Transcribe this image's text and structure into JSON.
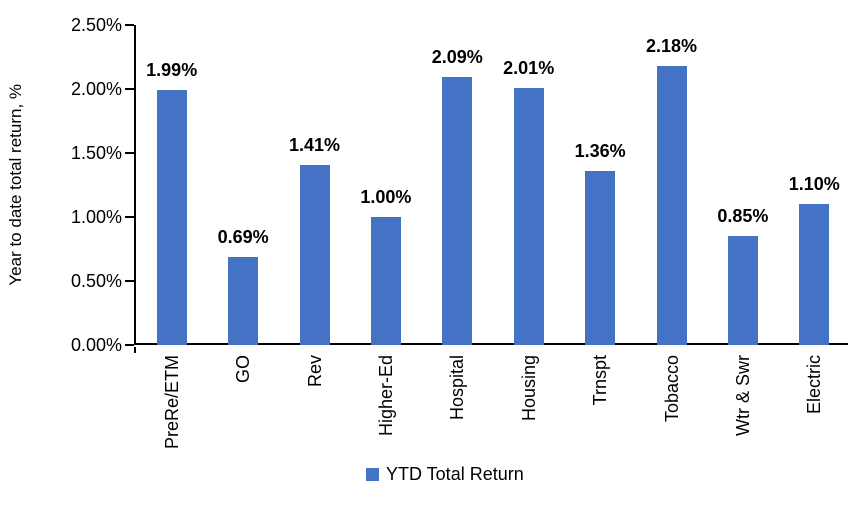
{
  "chart_data": {
    "type": "bar",
    "title": "",
    "xlabel": "",
    "ylabel": "Year to date total return, %",
    "categories": [
      "PreRe/ETM",
      "GO",
      "Rev",
      "Higher-Ed",
      "Hospital",
      "Housing",
      "Trnspt",
      "Tobacco",
      "Wtr & Swr",
      "Electric"
    ],
    "values": [
      1.99,
      0.69,
      1.41,
      1.0,
      2.09,
      2.01,
      1.36,
      2.18,
      0.85,
      1.1
    ],
    "value_labels": [
      "1.99%",
      "0.69%",
      "1.41%",
      "1.00%",
      "2.09%",
      "2.01%",
      "1.36%",
      "2.18%",
      "0.85%",
      "1.10%"
    ],
    "ylim": [
      0,
      2.5
    ],
    "ytick_labels": [
      "0.00%",
      "0.50%",
      "1.00%",
      "1.50%",
      "2.00%",
      "2.50%"
    ],
    "ytick_values": [
      0,
      0.5,
      1.0,
      1.5,
      2.0,
      2.5
    ],
    "grid": false,
    "legend": {
      "label": "YTD Total Return",
      "position": "bottom"
    },
    "colors": {
      "bar": "#4472C4",
      "axis": "#000000",
      "text": "#000000",
      "background": "#FFFFFF"
    }
  }
}
